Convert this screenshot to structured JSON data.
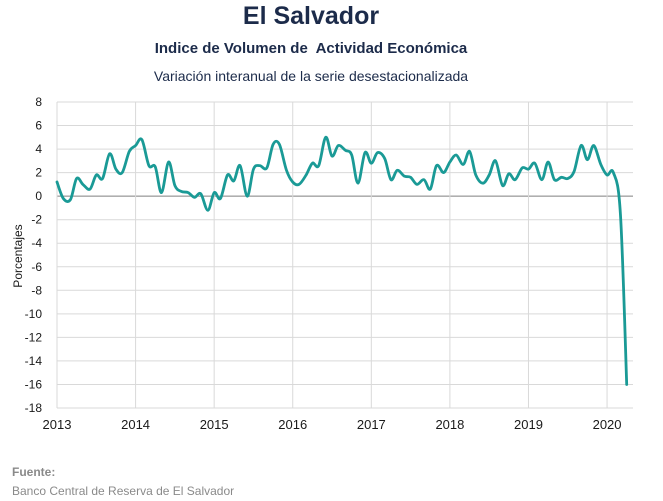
{
  "title": "El Salvador",
  "subtitle": "Indice de Volumen de  Actividad Económica",
  "subtitle2": "Variación interanual de la serie desestacionalizada",
  "source": {
    "label": "Fuente:",
    "text": "Banco Central de Reserva de El Salvador"
  },
  "colors": {
    "line": "#1a9a96",
    "grid": "#d9d9d9",
    "zero": "#7f7f7f",
    "text": "#1c2b4a"
  },
  "chart_data": {
    "type": "line",
    "ylabel": "Porcentajes",
    "ylim": [
      -18,
      8
    ],
    "yticks": [
      8,
      6,
      4,
      2,
      0,
      -2,
      -4,
      -6,
      -8,
      -10,
      -12,
      -14,
      -16,
      -18
    ],
    "xlim": [
      2013,
      2020.33
    ],
    "xticks": [
      2013,
      2014,
      2015,
      2016,
      2017,
      2018,
      2019,
      2020
    ],
    "grid": true,
    "series": [
      {
        "x": [
          2013.0,
          2013.08,
          2013.17,
          2013.25,
          2013.33,
          2013.42,
          2013.5,
          2013.58,
          2013.67,
          2013.75,
          2013.83,
          2013.92,
          2014.0,
          2014.08,
          2014.17,
          2014.25,
          2014.33,
          2014.42,
          2014.5,
          2014.58,
          2014.67,
          2014.75,
          2014.83,
          2014.92,
          2015.0,
          2015.08,
          2015.17,
          2015.25,
          2015.33,
          2015.42,
          2015.5,
          2015.58,
          2015.67,
          2015.75,
          2015.83,
          2015.92,
          2016.0,
          2016.08,
          2016.17,
          2016.25,
          2016.33,
          2016.42,
          2016.5,
          2016.58,
          2016.67,
          2016.75,
          2016.83,
          2016.92,
          2017.0,
          2017.08,
          2017.17,
          2017.25,
          2017.33,
          2017.42,
          2017.5,
          2017.58,
          2017.67,
          2017.75,
          2017.83,
          2017.92,
          2018.0,
          2018.08,
          2018.17,
          2018.25,
          2018.33,
          2018.42,
          2018.5,
          2018.58,
          2018.67,
          2018.75,
          2018.83,
          2018.92,
          2019.0,
          2019.08,
          2019.17,
          2019.25,
          2019.33,
          2019.42,
          2019.5,
          2019.58,
          2019.67,
          2019.75,
          2019.83,
          2019.92,
          2020.0,
          2020.08,
          2020.17,
          2020.25
        ],
        "values": [
          1.2,
          -0.2,
          -0.3,
          1.5,
          1.0,
          0.6,
          1.8,
          1.5,
          3.6,
          2.3,
          2.0,
          3.8,
          4.3,
          4.8,
          2.6,
          2.5,
          0.3,
          2.9,
          0.9,
          0.4,
          0.3,
          -0.1,
          0.2,
          -1.2,
          0.3,
          -0.2,
          1.8,
          1.3,
          2.6,
          0.0,
          2.3,
          2.6,
          2.4,
          4.4,
          4.4,
          2.2,
          1.2,
          1.0,
          1.8,
          2.8,
          2.6,
          5.0,
          3.4,
          4.3,
          3.9,
          3.5,
          1.1,
          3.7,
          2.8,
          3.7,
          3.2,
          1.4,
          2.2,
          1.7,
          1.6,
          1.0,
          1.4,
          0.6,
          2.6,
          2.0,
          2.9,
          3.5,
          2.7,
          3.8,
          1.8,
          1.1,
          1.8,
          3.0,
          0.9,
          1.9,
          1.4,
          2.4,
          2.3,
          2.8,
          1.4,
          2.9,
          1.4,
          1.6,
          1.5,
          2.1,
          4.3,
          3.1,
          4.3,
          2.7,
          1.8,
          2.0,
          -1.5,
          -16.0
        ]
      }
    ]
  }
}
